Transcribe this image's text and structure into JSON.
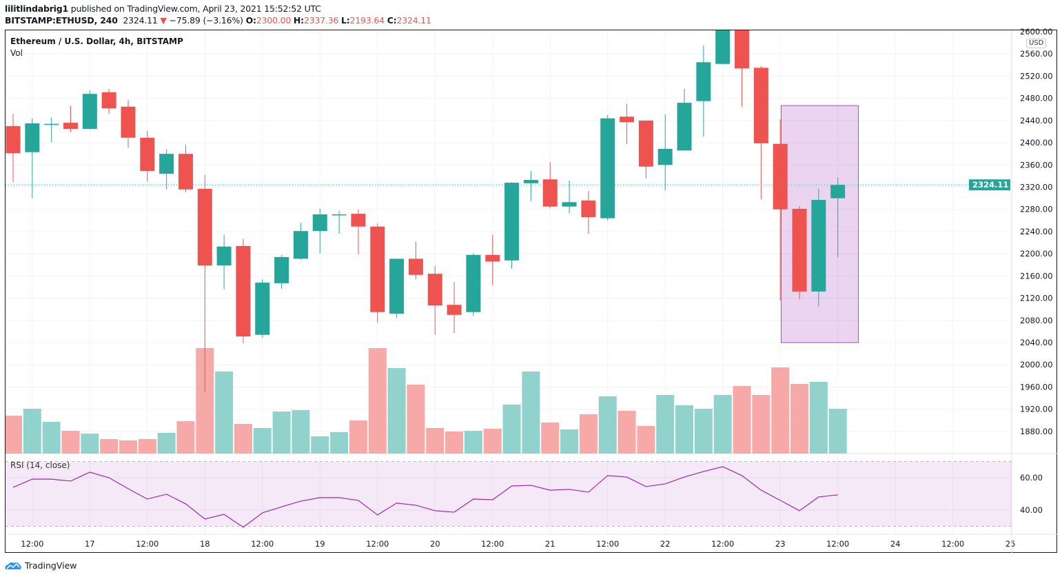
{
  "header": {
    "author": "lilitlindabrig1",
    "published": " published on TradingView.com, April 23, 2021 15:52:52 UTC",
    "symbol": "BITSTAMP:ETHUSD, 240",
    "last": "2324.11",
    "change": "−75.89 (−3.16%)",
    "o_label": "O:",
    "o": "2300.00",
    "h_label": "H:",
    "h": "2337.36",
    "l_label": "L:",
    "l": "2193.64",
    "c_label": "C:",
    "c": "2324.11"
  },
  "legend": {
    "title": "Ethereum / U.S. Dollar, 4h, BITSTAMP",
    "volume": "Vol",
    "rsi": "RSI (14, close)"
  },
  "currency": "USD",
  "footer": {
    "brand": "TradingView"
  },
  "colors": {
    "up": "#26a69a",
    "down": "#ef5350",
    "rsi_line": "#9c27b0",
    "highlight": "#9c27b0"
  },
  "chart_data": {
    "type": "candlestick",
    "ylim": [
      1840,
      2600
    ],
    "grid": true,
    "last_price_label": "2324.11",
    "yticks": [
      "2600.00",
      "2560.00",
      "2520.00",
      "2480.00",
      "2440.00",
      "2400.00",
      "2360.00",
      "2320.00",
      "2280.00",
      "2240.00",
      "2200.00",
      "2160.00",
      "2120.00",
      "2080.00",
      "2040.00",
      "2000.00",
      "1960.00",
      "1920.00",
      "1880.00"
    ],
    "xticks": [
      "12:00",
      "17",
      "12:00",
      "18",
      "12:00",
      "19",
      "12:00",
      "20",
      "12:00",
      "21",
      "12:00",
      "22",
      "12:00",
      "23",
      "12:00",
      "24",
      "12:00",
      "25"
    ],
    "candles": [
      {
        "o": 2430,
        "h": 2452,
        "l": 2329,
        "c": 2381
      },
      {
        "o": 2383,
        "h": 2444,
        "l": 2300,
        "c": 2435
      },
      {
        "o": 2432,
        "h": 2445,
        "l": 2401,
        "c": 2434
      },
      {
        "o": 2436,
        "h": 2466,
        "l": 2419,
        "c": 2425
      },
      {
        "o": 2425,
        "h": 2494,
        "l": 2424,
        "c": 2488
      },
      {
        "o": 2491,
        "h": 2497,
        "l": 2452,
        "c": 2462
      },
      {
        "o": 2465,
        "h": 2477,
        "l": 2391,
        "c": 2409
      },
      {
        "o": 2409,
        "h": 2421,
        "l": 2330,
        "c": 2349
      },
      {
        "o": 2344,
        "h": 2388,
        "l": 2316,
        "c": 2380
      },
      {
        "o": 2380,
        "h": 2396,
        "l": 2311,
        "c": 2316
      },
      {
        "o": 2317,
        "h": 2342,
        "l": 1951,
        "c": 2179
      },
      {
        "o": 2179,
        "h": 2234,
        "l": 2136,
        "c": 2213
      },
      {
        "o": 2214,
        "h": 2227,
        "l": 2039,
        "c": 2051
      },
      {
        "o": 2054,
        "h": 2154,
        "l": 2049,
        "c": 2148
      },
      {
        "o": 2147,
        "h": 2198,
        "l": 2137,
        "c": 2194
      },
      {
        "o": 2191,
        "h": 2256,
        "l": 2189,
        "c": 2241
      },
      {
        "o": 2241,
        "h": 2281,
        "l": 2201,
        "c": 2271
      },
      {
        "o": 2270,
        "h": 2277,
        "l": 2236,
        "c": 2271
      },
      {
        "o": 2272,
        "h": 2280,
        "l": 2199,
        "c": 2249
      },
      {
        "o": 2249,
        "h": 2255,
        "l": 2076,
        "c": 2095
      },
      {
        "o": 2092,
        "h": 2191,
        "l": 2084,
        "c": 2191
      },
      {
        "o": 2191,
        "h": 2222,
        "l": 2154,
        "c": 2162
      },
      {
        "o": 2164,
        "h": 2178,
        "l": 2054,
        "c": 2107
      },
      {
        "o": 2108,
        "h": 2149,
        "l": 2057,
        "c": 2090
      },
      {
        "o": 2095,
        "h": 2201,
        "l": 2088,
        "c": 2198
      },
      {
        "o": 2198,
        "h": 2234,
        "l": 2143,
        "c": 2186
      },
      {
        "o": 2188,
        "h": 2329,
        "l": 2173,
        "c": 2328
      },
      {
        "o": 2327,
        "h": 2349,
        "l": 2295,
        "c": 2333
      },
      {
        "o": 2334,
        "h": 2365,
        "l": 2282,
        "c": 2285
      },
      {
        "o": 2285,
        "h": 2332,
        "l": 2273,
        "c": 2293
      },
      {
        "o": 2296,
        "h": 2313,
        "l": 2236,
        "c": 2266
      },
      {
        "o": 2264,
        "h": 2450,
        "l": 2260,
        "c": 2444
      },
      {
        "o": 2447,
        "h": 2470,
        "l": 2398,
        "c": 2437
      },
      {
        "o": 2440,
        "h": 2440,
        "l": 2336,
        "c": 2357
      },
      {
        "o": 2360,
        "h": 2451,
        "l": 2314,
        "c": 2389
      },
      {
        "o": 2386,
        "h": 2497,
        "l": 2386,
        "c": 2472
      },
      {
        "o": 2475,
        "h": 2575,
        "l": 2411,
        "c": 2545
      },
      {
        "o": 2542,
        "h": 2610,
        "l": 2541,
        "c": 2604
      },
      {
        "o": 2604,
        "h": 2612,
        "l": 2465,
        "c": 2534
      },
      {
        "o": 2535,
        "h": 2538,
        "l": 2298,
        "c": 2399
      },
      {
        "o": 2398,
        "h": 2442,
        "l": 2116,
        "c": 2280
      },
      {
        "o": 2281,
        "h": 2286,
        "l": 2118,
        "c": 2132
      },
      {
        "o": 2132,
        "h": 2317,
        "l": 2105,
        "c": 2297
      },
      {
        "o": 2300,
        "h": 2337.36,
        "l": 2193.64,
        "c": 2324.11
      }
    ],
    "volume_relative": [
      55,
      65,
      46,
      33,
      29,
      21,
      19,
      21,
      30,
      47,
      153,
      119,
      43,
      37,
      61,
      63,
      25,
      31,
      48,
      153,
      124,
      100,
      37,
      32,
      33,
      36,
      71,
      119,
      45,
      35,
      57,
      83,
      62,
      40,
      85,
      70,
      65,
      85,
      98,
      85,
      125,
      101,
      104,
      65
    ],
    "rsi": {
      "ylim": [
        30,
        70
      ],
      "yticks": [
        "60.00",
        "40.00"
      ],
      "band": [
        30,
        70
      ],
      "values": [
        54.0,
        59.1,
        59.1,
        57.9,
        63.4,
        60.0,
        53.2,
        46.8,
        49.8,
        43.8,
        34.5,
        37.4,
        29.4,
        38.3,
        42.0,
        45.5,
        47.7,
        47.7,
        46.0,
        37.0,
        44.3,
        43.0,
        39.6,
        38.7,
        46.8,
        46.4,
        54.9,
        55.3,
        52.3,
        52.8,
        51.1,
        61.3,
        60.4,
        54.5,
        56.2,
        60.4,
        63.8,
        66.8,
        61.3,
        52.3,
        46.0,
        39.6,
        48.1,
        49.4
      ]
    },
    "highlight_box": {
      "from": "23 00:00",
      "to": "23 16:00",
      "price_low": 2040,
      "price_high": 2467
    }
  }
}
